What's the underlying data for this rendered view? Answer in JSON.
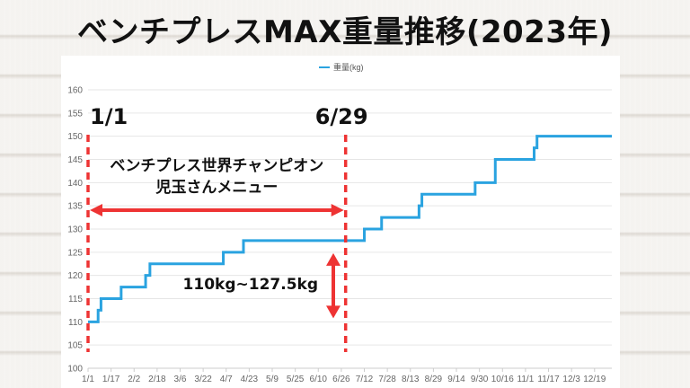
{
  "title": "ベンチプレスMAX重量推移(2023年)",
  "chart_data": {
    "type": "line",
    "series": [
      {
        "name": "重量(kg)",
        "color": "#2aa3e0",
        "points": [
          [
            "2023-01-01",
            110
          ],
          [
            "2023-01-08",
            110
          ],
          [
            "2023-01-08",
            112.5
          ],
          [
            "2023-01-10",
            112.5
          ],
          [
            "2023-01-10",
            115
          ],
          [
            "2023-01-24",
            115
          ],
          [
            "2023-01-24",
            117.5
          ],
          [
            "2023-02-10",
            117.5
          ],
          [
            "2023-02-10",
            120
          ],
          [
            "2023-02-13",
            120
          ],
          [
            "2023-02-13",
            122.5
          ],
          [
            "2023-04-05",
            122.5
          ],
          [
            "2023-04-05",
            125
          ],
          [
            "2023-04-19",
            125
          ],
          [
            "2023-04-19",
            127.5
          ],
          [
            "2023-07-12",
            127.5
          ],
          [
            "2023-07-12",
            130
          ],
          [
            "2023-07-24",
            130
          ],
          [
            "2023-07-24",
            132.5
          ],
          [
            "2023-08-19",
            132.5
          ],
          [
            "2023-08-19",
            135
          ],
          [
            "2023-08-21",
            135
          ],
          [
            "2023-08-21",
            137.5
          ],
          [
            "2023-09-27",
            137.5
          ],
          [
            "2023-09-27",
            140
          ],
          [
            "2023-10-11",
            140
          ],
          [
            "2023-10-11",
            145
          ],
          [
            "2023-11-07",
            145
          ],
          [
            "2023-11-07",
            147.5
          ],
          [
            "2023-11-09",
            147.5
          ],
          [
            "2023-11-09",
            150
          ],
          [
            "2023-12-31",
            150
          ]
        ]
      }
    ],
    "y_ticks": [
      100,
      105,
      110,
      115,
      120,
      125,
      130,
      135,
      140,
      145,
      150,
      155,
      160
    ],
    "ylim": [
      100,
      160
    ],
    "x_ticks": [
      "1/1",
      "1/17",
      "2/2",
      "2/18",
      "3/6",
      "3/22",
      "4/7",
      "4/23",
      "5/9",
      "5/25",
      "6/10",
      "6/26",
      "7/12",
      "7/28",
      "8/13",
      "8/29",
      "9/14",
      "9/30",
      "10/16",
      "11/1",
      "11/17",
      "12/3",
      "12/19"
    ],
    "x_tick_dates": [
      "2023-01-01",
      "2023-01-17",
      "2023-02-02",
      "2023-02-18",
      "2023-03-06",
      "2023-03-22",
      "2023-04-07",
      "2023-04-23",
      "2023-05-09",
      "2023-05-25",
      "2023-06-10",
      "2023-06-26",
      "2023-07-12",
      "2023-07-28",
      "2023-08-13",
      "2023-08-29",
      "2023-09-14",
      "2023-09-30",
      "2023-10-16",
      "2023-11-01",
      "2023-11-17",
      "2023-12-03",
      "2023-12-19"
    ],
    "xlim": [
      "2023-01-01",
      "2023-12-31"
    ],
    "grid": "horizontal",
    "legend": "top-center",
    "annotations": {
      "start_label": "1/1",
      "end_label": "6/29",
      "start_date": "2023-01-01",
      "end_date": "2023-06-29",
      "period_text_line1": "ベンチプレス世界チャンピオン",
      "period_text_line2": "児玉さんメニュー",
      "range_text": "110kg~127.5kg",
      "range_low": 110,
      "range_high": 127.5,
      "marker_color": "#ee3333"
    }
  }
}
